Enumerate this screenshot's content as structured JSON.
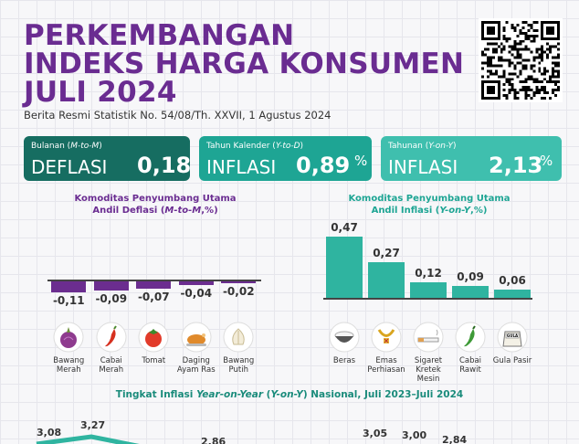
{
  "title_lines": [
    "PERKEMBANGAN",
    "INDEKS HARGA KONSUMEN",
    "JULI 2024"
  ],
  "subtitle": "Berita Resmi Statistik No. 54/08/Th. XXVII, 1 Agustus 2024",
  "stats": {
    "mtm": {
      "label_prefix": "Bulanan (",
      "label_term": "M-to-M",
      "label_suffix": ")",
      "kind": "DEFLASI",
      "value": "0,18",
      "unit": "%"
    },
    "ytd": {
      "label_prefix": "Tahun Kalender (",
      "label_term": "Y-to-D",
      "label_suffix": ")",
      "kind": "INFLASI",
      "value": "0,89",
      "unit": "%"
    },
    "yoy": {
      "label_prefix": "Tahunan (",
      "label_term": "Y-on-Y",
      "label_suffix": ")",
      "kind": "INFLASI",
      "value": "2,13",
      "unit": "%"
    }
  },
  "colors": {
    "purple": "#6a2c91",
    "dark_teal": "#166d61",
    "teal": "#1ea594",
    "light_teal": "#3fbfae"
  },
  "chart_data": [
    {
      "type": "bar",
      "title": "Komoditas Penyumbang Utama Andil Deflasi (M-to-M,%)",
      "title_line1": "Komoditas Penyumbang Utama",
      "title_line2_prefix": "Andil Deflasi (",
      "title_line2_term": "M-to-M",
      "title_line2_suffix": ",%)",
      "categories": [
        "Bawang Merah",
        "Cabai Merah",
        "Tomat",
        "Daging Ayam Ras",
        "Bawang Putih"
      ],
      "category_lines": [
        [
          "Bawang",
          "Merah"
        ],
        [
          "Cabai",
          "Merah"
        ],
        [
          "Tomat"
        ],
        [
          "Daging",
          "Ayam Ras"
        ],
        [
          "Bawang",
          "Putih"
        ]
      ],
      "values": [
        -0.11,
        -0.09,
        -0.07,
        -0.04,
        -0.02
      ],
      "value_labels": [
        "-0,11",
        "-0,09",
        "-0,07",
        "-0,04",
        "-0,02"
      ],
      "icons": [
        "onion-icon",
        "chili-icon",
        "tomato-icon",
        "chicken-icon",
        "garlic-icon"
      ]
    },
    {
      "type": "bar",
      "title": "Komoditas Penyumbang Utama Andil Inflasi (Y-on-Y,%)",
      "title_line1": "Komoditas Penyumbang Utama",
      "title_line2_prefix": "Andil Inflasi (",
      "title_line2_term": "Y-on-Y",
      "title_line2_suffix": ",%)",
      "categories": [
        "Beras",
        "Emas Perhiasan",
        "Sigaret Kretek Mesin",
        "Cabai Rawit",
        "Gula Pasir"
      ],
      "category_lines": [
        [
          "Beras"
        ],
        [
          "Emas",
          "Perhiasan"
        ],
        [
          "Sigaret Kretek",
          "Mesin"
        ],
        [
          "Cabai",
          "Rawit"
        ],
        [
          "Gula Pasir"
        ]
      ],
      "values": [
        0.47,
        0.27,
        0.12,
        0.09,
        0.06
      ],
      "value_labels": [
        "0,47",
        "0,27",
        "0,12",
        "0,09",
        "0,06"
      ],
      "icons": [
        "rice-bowl-icon",
        "gold-jewelry-icon",
        "cigarette-icon",
        "green-chili-icon",
        "sugar-icon"
      ],
      "sugar_icon_text": "GULA"
    },
    {
      "type": "line",
      "title": "Tingkat Inflasi Year-on-Year (Y-on-Y) Nasional, Juli 2023–Juli 2024",
      "title_prefix": "Tingkat Inflasi ",
      "title_term1": "Year-on-Year",
      "title_mid": " (",
      "title_term2": "Y-on-Y",
      "title_suffix": ") Nasional, Juli 2023–Juli 2024",
      "visible_value_labels": [
        "3,08",
        "3,27",
        "2,86",
        "3,05",
        "3,00",
        "2,84"
      ]
    }
  ]
}
